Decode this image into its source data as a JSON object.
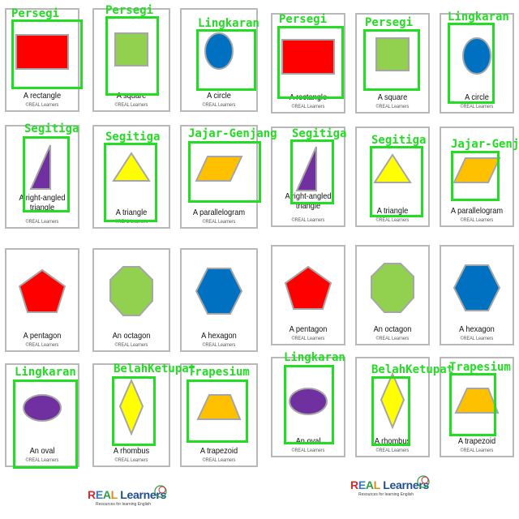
{
  "copyright": "©REAL Learners",
  "cards": [
    {
      "id": "rect-1",
      "caption": "A rectangle",
      "shape": "rectangle",
      "fill": "#ff0000"
    },
    {
      "id": "square-1",
      "caption": "A square",
      "shape": "square",
      "fill": "#92d050"
    },
    {
      "id": "circle-1",
      "caption": "A circle",
      "shape": "circle",
      "fill": "#0070c0"
    },
    {
      "id": "rect-2",
      "caption": "A rectangle",
      "shape": "rectangle",
      "fill": "#ff0000"
    },
    {
      "id": "square-2",
      "caption": "A square",
      "shape": "square",
      "fill": "#92d050"
    },
    {
      "id": "circle-2",
      "caption": "A circle",
      "shape": "circle",
      "fill": "#0070c0"
    },
    {
      "id": "rt-1",
      "caption_lines": [
        "A right-angled",
        "triangle"
      ],
      "shape": "right-triangle",
      "fill": "#7030a0"
    },
    {
      "id": "tri-1",
      "caption": "A triangle",
      "shape": "triangle",
      "fill": "#ffff00"
    },
    {
      "id": "para-1",
      "caption": "A parallelogram",
      "shape": "parallelogram",
      "fill": "#ffc000"
    },
    {
      "id": "rt-2",
      "caption_lines": [
        "A right-angled",
        "triangle"
      ],
      "shape": "right-triangle",
      "fill": "#7030a0"
    },
    {
      "id": "tri-2",
      "caption": "A triangle",
      "shape": "triangle",
      "fill": "#ffff00"
    },
    {
      "id": "para-2",
      "caption": "A parallelogram",
      "shape": "parallelogram",
      "fill": "#ffc000"
    },
    {
      "id": "pent-1",
      "caption": "A pentagon",
      "shape": "pentagon",
      "fill": "#ff0000"
    },
    {
      "id": "oct-1",
      "caption": "An octagon",
      "shape": "octagon",
      "fill": "#92d050"
    },
    {
      "id": "hex-1",
      "caption": "A hexagon",
      "shape": "hexagon",
      "fill": "#0070c0"
    },
    {
      "id": "pent-2",
      "caption": "A pentagon",
      "shape": "pentagon",
      "fill": "#ff0000"
    },
    {
      "id": "oct-2",
      "caption": "An octagon",
      "shape": "octagon",
      "fill": "#92d050"
    },
    {
      "id": "hex-2",
      "caption": "A hexagon",
      "shape": "hexagon",
      "fill": "#0070c0"
    },
    {
      "id": "oval-1",
      "caption": "An oval",
      "shape": "oval",
      "fill": "#7030a0"
    },
    {
      "id": "rhom-1",
      "caption": "A rhombus",
      "shape": "rhombus",
      "fill": "#ffff00"
    },
    {
      "id": "trap-1",
      "caption": "A trapezoid",
      "shape": "trapezoid",
      "fill": "#ffc000"
    },
    {
      "id": "oval-2",
      "caption": "An oval",
      "shape": "oval",
      "fill": "#7030a0"
    },
    {
      "id": "rhom-2",
      "caption": "A rhombus",
      "shape": "rhombus",
      "fill": "#ffff00"
    },
    {
      "id": "trap-2",
      "caption": "A trapezoid",
      "shape": "trapezoid",
      "fill": "#ffc000"
    }
  ],
  "detections": [
    {
      "id": "rect-1",
      "label": "Persegi"
    },
    {
      "id": "square-1",
      "label": "Persegi"
    },
    {
      "id": "circle-1",
      "label": "Lingkaran"
    },
    {
      "id": "rect-2",
      "label": "Persegi"
    },
    {
      "id": "square-2",
      "label": "Persegi"
    },
    {
      "id": "circle-2",
      "label": "Lingkaran"
    },
    {
      "id": "rt-1",
      "label": "Segitiga"
    },
    {
      "id": "tri-1",
      "label": "Segitiga"
    },
    {
      "id": "para-1",
      "label": "Jajar-Genjang"
    },
    {
      "id": "rt-2",
      "label": "Segitiga"
    },
    {
      "id": "tri-2",
      "label": "Segitiga"
    },
    {
      "id": "para-2",
      "label": "Jajar-Genjang"
    },
    {
      "id": "oval-1",
      "label": "Lingkaran"
    },
    {
      "id": "rhom-1",
      "label": "BelahKetupat"
    },
    {
      "id": "trap-1",
      "label": "Trapesium"
    },
    {
      "id": "oval-2",
      "label": "Lingkaran"
    },
    {
      "id": "rhom-2",
      "label": "BelahKetupat"
    },
    {
      "id": "trap-2",
      "label": "Trapesium"
    }
  ],
  "colors": {
    "detection": "#22dd22",
    "card_border": "#b9b9b9",
    "shape_stroke": "#a6a6a6"
  },
  "logo": {
    "brand": "REAL Learners",
    "tagline": "Resources for learning English"
  }
}
